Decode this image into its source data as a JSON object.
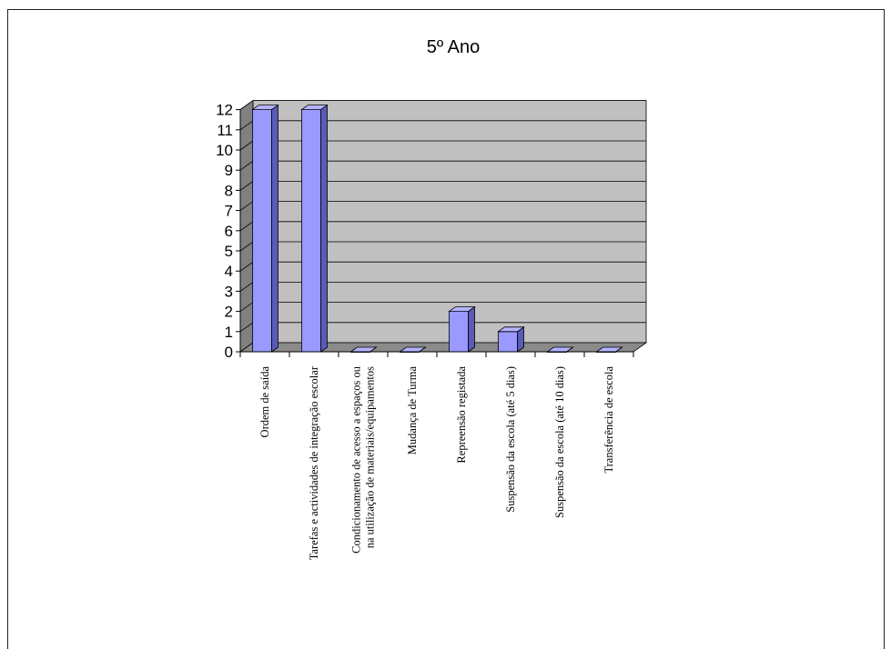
{
  "chart_data": {
    "type": "bar",
    "title": "5º Ano",
    "xlabel": "",
    "ylabel": "",
    "ylim": [
      0,
      12
    ],
    "yticks": [
      "0",
      "1",
      "2",
      "3",
      "4",
      "5",
      "6",
      "7",
      "8",
      "9",
      "10",
      "11",
      "12"
    ],
    "grid": true,
    "legend": "none",
    "style": "3d",
    "categories": [
      [
        "Ordem de saída"
      ],
      [
        "Tarefas e actividades de integração escolar"
      ],
      [
        "Condicionamento de acesso a espaços ou",
        "na utilização  de materiais/equipamentos"
      ],
      [
        "Mudança de Turma"
      ],
      [
        "Repreensão registada"
      ],
      [
        "Suspensão da escola (até 5 dias)"
      ],
      [
        "Suspensão da escola (até 10 dias)"
      ],
      [
        "Transferência de escola"
      ]
    ],
    "values": [
      12,
      12,
      0,
      0,
      2,
      1,
      0,
      0
    ],
    "colors": {
      "bar_front": "#9999ff",
      "bar_side": "#5a5ab8",
      "bar_top": "#b3b3ff",
      "wall": "#c0c0c0",
      "side_wall": "#808080",
      "floor": "#8a8a8a",
      "gridline": "#000000"
    }
  }
}
